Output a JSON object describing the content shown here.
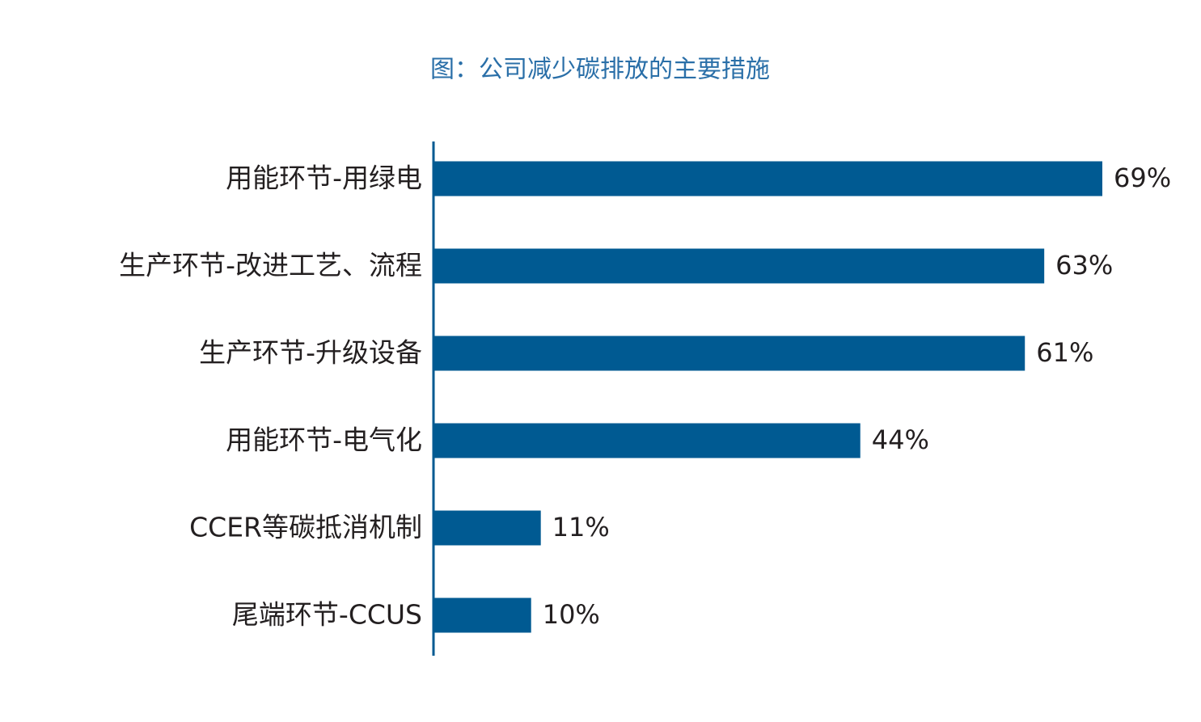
{
  "chart_data": {
    "type": "hbar",
    "title": "图：公司减少碳排放的主要措施",
    "categories": [
      "用能环节-用绿电",
      "生产环节-改进工艺、流程",
      "生产环节-升级设备",
      "用能环节-电气化",
      "CCER等碳抵消机制",
      "尾端环节-CCUS"
    ],
    "values": [
      69,
      63,
      61,
      44,
      11,
      10
    ],
    "value_labels": [
      "69%",
      "63%",
      "61%",
      "44%",
      "11%",
      "10%"
    ],
    "color": "#005a92"
  }
}
